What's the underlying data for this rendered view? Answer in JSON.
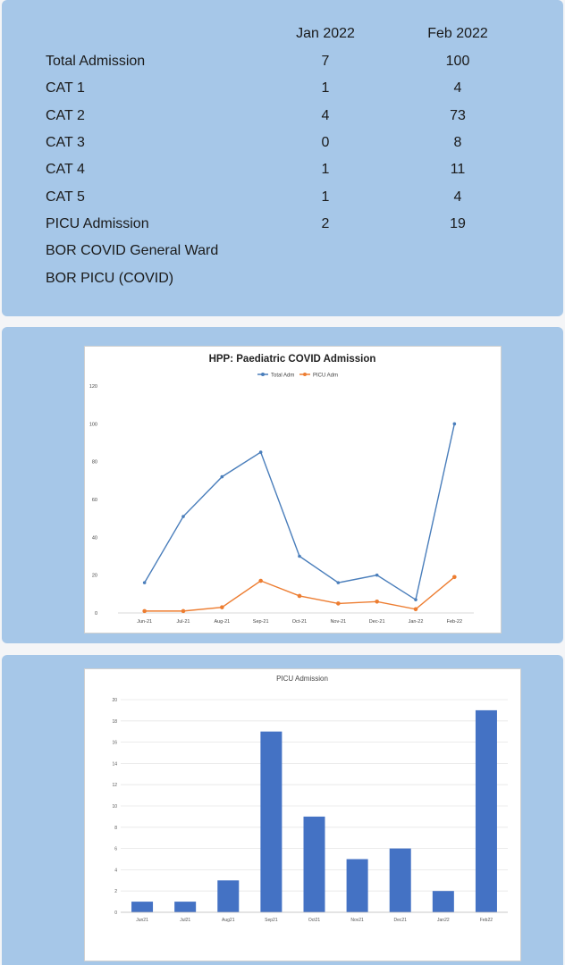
{
  "summary_table": {
    "headers": [
      "Jan 2022",
      "Feb 2022"
    ],
    "rows": [
      {
        "label": "Total Admission",
        "jan": "7",
        "feb": "100"
      },
      {
        "label": "CAT 1",
        "jan": "1",
        "feb": "4"
      },
      {
        "label": "CAT 2",
        "jan": "4",
        "feb": "73"
      },
      {
        "label": "CAT 3",
        "jan": "0",
        "feb": "8"
      },
      {
        "label": "CAT 4",
        "jan": "1",
        "feb": "11"
      },
      {
        "label": "CAT 5",
        "jan": "1",
        "feb": "4"
      },
      {
        "label": "PICU Admission",
        "jan": "2",
        "feb": "19"
      },
      {
        "label": "BOR COVID General Ward",
        "jan": "",
        "feb": ""
      },
      {
        "label": "BOR PICU (COVID)",
        "jan": "",
        "feb": ""
      }
    ]
  },
  "colors": {
    "panel": "#a6c7e8",
    "total_adm": "#4a7ebb",
    "picu_adm": "#ed7d31",
    "bar": "#4472c4"
  },
  "chart_data": [
    {
      "type": "line",
      "title": "HPP: Paediatric COVID Admission",
      "categories": [
        "Jun-21",
        "Jul-21",
        "Aug-21",
        "Sep-21",
        "Oct-21",
        "Nov-21",
        "Dec-21",
        "Jan-22",
        "Feb-22"
      ],
      "series": [
        {
          "name": "Total Adm",
          "values": [
            16,
            51,
            72,
            85,
            30,
            16,
            20,
            7,
            100
          ]
        },
        {
          "name": "PICU Adm",
          "values": [
            1,
            1,
            3,
            17,
            9,
            5,
            6,
            2,
            19
          ]
        }
      ],
      "yticks": [
        "0",
        "20",
        "40",
        "60",
        "80",
        "100",
        "120"
      ],
      "ylim": [
        0,
        120
      ],
      "legend": "top",
      "grid": false
    },
    {
      "type": "bar",
      "title": "PICU Admission",
      "categories": [
        "Jun21",
        "Jul21",
        "Aug21",
        "Sep21",
        "Oct21",
        "Nov21",
        "Dec21",
        "Jan22",
        "Feb22"
      ],
      "values": [
        1,
        1,
        3,
        17,
        9,
        5,
        6,
        2,
        19
      ],
      "yticks": [
        "0",
        "2",
        "4",
        "6",
        "8",
        "10",
        "12",
        "14",
        "16",
        "18",
        "20"
      ],
      "ylim": [
        0,
        20
      ],
      "grid": true
    }
  ]
}
